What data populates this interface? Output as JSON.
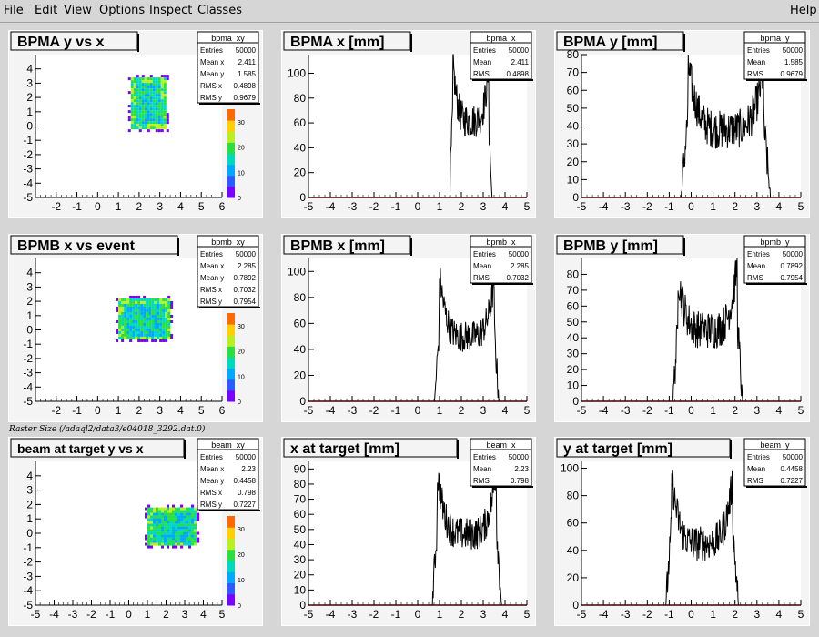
{
  "menu": {
    "file": "File",
    "edit": "Edit",
    "view": "View",
    "options": "Options",
    "inspect": "Inspect",
    "classes": "Classes",
    "help": "Help"
  },
  "caption": "Raster Size (/adaql2/data3/e04018_3292.dat.0)",
  "colors": {
    "hist_line": "#000000",
    "axis_frame": "#000000",
    "baseline": "#cc0000",
    "palette": [
      "#7a00ff",
      "#2a5cff",
      "#00a8ff",
      "#00d8c0",
      "#29e040",
      "#b8f020",
      "#ffd000",
      "#ff6a00"
    ]
  },
  "chart_data": [
    {
      "id": "bpma_xy",
      "type": "heatmap",
      "title": "BPMA y vs x",
      "stats": {
        "name": "bpma_xy",
        "rows": [
          [
            "Entries",
            "50000"
          ],
          [
            "Mean x",
            "2.411"
          ],
          [
            "Mean y",
            "1.585"
          ],
          [
            "RMS x",
            "0.4898"
          ],
          [
            "RMS y",
            "0.9679"
          ]
        ]
      },
      "xlim": [
        -3,
        6
      ],
      "ylim": [
        -5,
        5
      ],
      "x_ticks": [
        "-2",
        "-1",
        "0",
        "1",
        "2",
        "3",
        "4",
        "5",
        "6"
      ],
      "y_ticks": [
        "-5",
        "-4",
        "-3",
        "-2",
        "-1",
        "0",
        "1",
        "2",
        "3",
        "4"
      ],
      "region": {
        "x": [
          1.6,
          3.2
        ],
        "y": [
          -0.1,
          3.4
        ]
      },
      "z_ticks": [
        "0",
        "10",
        "20",
        "30"
      ],
      "zmax": 35
    },
    {
      "id": "bpma_x",
      "type": "line",
      "title": "BPMA x [mm]",
      "stats": {
        "name": "bpma_x",
        "rows": [
          [
            "Entries",
            "50000"
          ],
          [
            "Mean",
            "2.411"
          ],
          [
            "RMS",
            "0.4898"
          ]
        ]
      },
      "xlim": [
        -5,
        5
      ],
      "ylim": [
        0,
        115
      ],
      "x_ticks": [
        "-5",
        "-4",
        "-3",
        "-2",
        "-1",
        "0",
        "1",
        "2",
        "3",
        "4",
        "5"
      ],
      "y_ticks": [
        "0",
        "20",
        "40",
        "60",
        "80",
        "100"
      ],
      "profile": {
        "lo": 1.6,
        "hi": 3.25,
        "left_peak": 112,
        "right_peak": 104,
        "trough": 62,
        "noise": 14
      }
    },
    {
      "id": "bpma_y",
      "type": "line",
      "title": "BPMA y [mm]",
      "stats": {
        "name": "bpma_y",
        "rows": [
          [
            "Entries",
            "50000"
          ],
          [
            "Mean",
            "1.585"
          ],
          [
            "RMS",
            "0.9679"
          ]
        ]
      },
      "xlim": [
        -5,
        5
      ],
      "ylim": [
        0,
        80
      ],
      "x_ticks": [
        "-5",
        "-4",
        "-3",
        "-2",
        "-1",
        "0",
        "1",
        "2",
        "3",
        "4",
        "5"
      ],
      "y_ticks": [
        "0",
        "10",
        "20",
        "30",
        "40",
        "50",
        "60",
        "70",
        "80"
      ],
      "profile": {
        "lo": -0.15,
        "hi": 3.3,
        "left_peak": 76,
        "right_peak": 71,
        "trough": 38,
        "noise": 11
      }
    },
    {
      "id": "bpmb_xy",
      "type": "heatmap",
      "title": "BPMB x vs event",
      "stats": {
        "name": "bpmb_xy",
        "rows": [
          [
            "Entries",
            "50000"
          ],
          [
            "Mean x",
            "2.285"
          ],
          [
            "Mean y",
            "0.7892"
          ],
          [
            "RMS x",
            "0.7032"
          ],
          [
            "RMS y",
            "0.7954"
          ]
        ]
      },
      "xlim": [
        -3,
        6
      ],
      "ylim": [
        -5,
        5
      ],
      "x_ticks": [
        "-2",
        "-1",
        "0",
        "1",
        "2",
        "3",
        "4",
        "5",
        "6"
      ],
      "y_ticks": [
        "-5",
        "-4",
        "-3",
        "-2",
        "-1",
        "0",
        "1",
        "2",
        "3",
        "4"
      ],
      "region": {
        "x": [
          1.0,
          3.4
        ],
        "y": [
          -0.6,
          2.2
        ]
      },
      "z_ticks": [
        "0",
        "10",
        "20",
        "30"
      ],
      "zmax": 35
    },
    {
      "id": "bpmb_x",
      "type": "line",
      "title": "BPMB x [mm]",
      "stats": {
        "name": "bpmb_x",
        "rows": [
          [
            "Entries",
            "50000"
          ],
          [
            "Mean",
            "2.285"
          ],
          [
            "RMS",
            "0.7032"
          ]
        ]
      },
      "xlim": [
        -5,
        5
      ],
      "ylim": [
        0,
        110
      ],
      "x_ticks": [
        "-5",
        "-4",
        "-3",
        "-2",
        "-1",
        "0",
        "1",
        "2",
        "3",
        "4",
        "5"
      ],
      "y_ticks": [
        "0",
        "20",
        "40",
        "60",
        "80",
        "100"
      ],
      "profile": {
        "lo": 1.0,
        "hi": 3.5,
        "left_peak": 98,
        "right_peak": 92,
        "trough": 50,
        "noise": 12
      }
    },
    {
      "id": "bpmb_y",
      "type": "line",
      "title": "BPMB y [mm]",
      "stats": {
        "name": "bpmb_y",
        "rows": [
          [
            "Entries",
            "50000"
          ],
          [
            "Mean",
            "0.7892"
          ],
          [
            "RMS",
            "0.7954"
          ]
        ]
      },
      "xlim": [
        -5,
        5
      ],
      "ylim": [
        0,
        90
      ],
      "x_ticks": [
        "-5",
        "-4",
        "-3",
        "-2",
        "-1",
        "0",
        "1",
        "2",
        "3",
        "4",
        "5"
      ],
      "y_ticks": [
        "0",
        "10",
        "20",
        "30",
        "40",
        "50",
        "60",
        "70",
        "80"
      ],
      "profile": {
        "lo": -0.6,
        "hi": 2.1,
        "left_peak": 80,
        "right_peak": 86,
        "trough": 45,
        "noise": 12
      }
    },
    {
      "id": "beam_xy",
      "type": "heatmap",
      "title": "beam at target y vs x",
      "stats": {
        "name": "beam_xy",
        "rows": [
          [
            "Entries",
            "50000"
          ],
          [
            "Mean x",
            "2.23"
          ],
          [
            "Mean y",
            "0.4458"
          ],
          [
            "RMS x",
            "0.798"
          ],
          [
            "RMS y",
            "0.7227"
          ]
        ]
      },
      "xlim": [
        -5,
        5
      ],
      "ylim": [
        -5,
        5
      ],
      "x_ticks": [
        "-5",
        "-4",
        "-3",
        "-2",
        "-1",
        "0",
        "1",
        "2",
        "3",
        "4",
        "5"
      ],
      "y_ticks": [
        "-5",
        "-4",
        "-3",
        "-2",
        "-1",
        "0",
        "1",
        "2",
        "3",
        "4"
      ],
      "region": {
        "x": [
          1.0,
          3.6
        ],
        "y": [
          -0.8,
          1.8
        ]
      },
      "z_ticks": [
        "0",
        "10",
        "20",
        "30"
      ],
      "zmax": 35
    },
    {
      "id": "beam_x",
      "type": "line",
      "title": "x at target [mm]",
      "stats": {
        "name": "beam_x",
        "rows": [
          [
            "Entries",
            "50000"
          ],
          [
            "Mean",
            "2.23"
          ],
          [
            "RMS",
            "0.798"
          ]
        ]
      },
      "xlim": [
        -5,
        5
      ],
      "ylim": [
        0,
        95
      ],
      "x_ticks": [
        "-5",
        "-4",
        "-3",
        "-2",
        "-1",
        "0",
        "1",
        "2",
        "3",
        "4",
        "5"
      ],
      "y_ticks": [
        "0",
        "10",
        "20",
        "30",
        "40",
        "50",
        "60",
        "70",
        "80",
        "90"
      ],
      "profile": {
        "lo": 0.9,
        "hi": 3.6,
        "left_peak": 88,
        "right_peak": 90,
        "trough": 47,
        "noise": 11
      }
    },
    {
      "id": "beam_y",
      "type": "line",
      "title": "y at target [mm]",
      "stats": {
        "name": "beam_y",
        "rows": [
          [
            "Entries",
            "50000"
          ],
          [
            "Mean",
            "0.4458"
          ],
          [
            "RMS",
            "0.7227"
          ]
        ]
      },
      "xlim": [
        -5,
        5
      ],
      "ylim": [
        0,
        105
      ],
      "x_ticks": [
        "-5",
        "-4",
        "-3",
        "-2",
        "-1",
        "0",
        "1",
        "2",
        "3",
        "4",
        "5"
      ],
      "y_ticks": [
        "0",
        "20",
        "40",
        "60",
        "80",
        "100"
      ],
      "profile": {
        "lo": -0.9,
        "hi": 1.9,
        "left_peak": 95,
        "right_peak": 93,
        "trough": 45,
        "noise": 13
      }
    }
  ]
}
